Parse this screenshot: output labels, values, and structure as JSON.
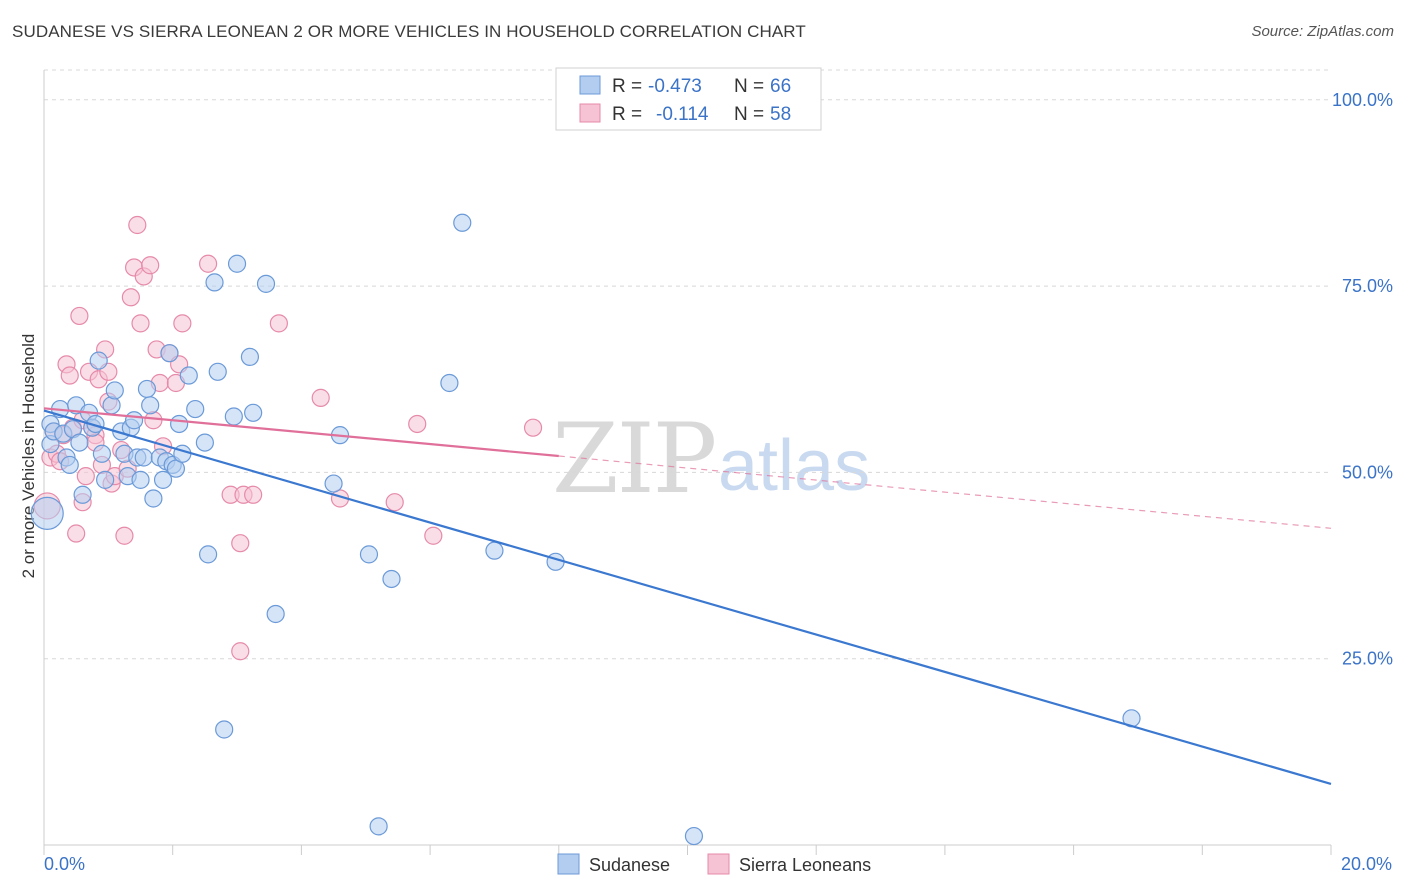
{
  "title": "SUDANESE VS SIERRA LEONEAN 2 OR MORE VEHICLES IN HOUSEHOLD CORRELATION CHART",
  "source": "Source: ZipAtlas.com",
  "watermark": {
    "zip": "ZIP",
    "atlas": "atlas"
  },
  "colors": {
    "blue_fill": "#b3cdf0",
    "blue_stroke": "#6b9ad8",
    "blue_line": "#3b78d0",
    "pink_fill": "#f6c3d4",
    "pink_stroke": "#e68aaa",
    "pink_line": "#e0709a",
    "tick_text": "#3b73c7",
    "grid": "#d8d8d8"
  },
  "legend": {
    "rows": [
      {
        "r_label": "R =",
        "r_value": "-0.473",
        "n_label": "N =",
        "n_value": "66"
      },
      {
        "r_label": "R =",
        "r_value": "-0.114",
        "n_label": "N =",
        "n_value": "58"
      }
    ]
  },
  "bottom_legend": [
    "Sudanese",
    "Sierra Leoneans"
  ],
  "chart_data": {
    "type": "scatter",
    "title": "SUDANESE VS SIERRA LEONEAN 2 OR MORE VEHICLES IN HOUSEHOLD CORRELATION CHART",
    "xlabel": "",
    "ylabel": "2 or more Vehicles in Household",
    "xlim": [
      0,
      20
    ],
    "ylim": [
      0,
      104
    ],
    "x_tick_labels": [
      "0.0%",
      "20.0%"
    ],
    "y_ticks": [
      25,
      50,
      75,
      100
    ],
    "y_tick_labels": [
      "25.0%",
      "50.0%",
      "75.0%",
      "100.0%"
    ],
    "series": [
      {
        "name": "Sudanese",
        "r": -0.473,
        "n": 66,
        "trend": {
          "x0": 0,
          "y0": 58.3,
          "x1": 20,
          "y1": 8.2
        },
        "points": [
          {
            "x": 0.05,
            "y": 44.5,
            "s": 16
          },
          {
            "x": 0.1,
            "y": 56.5
          },
          {
            "x": 0.1,
            "y": 53.8
          },
          {
            "x": 0.15,
            "y": 55.5
          },
          {
            "x": 0.25,
            "y": 58.5
          },
          {
            "x": 0.3,
            "y": 55.2
          },
          {
            "x": 0.35,
            "y": 52.0
          },
          {
            "x": 0.4,
            "y": 51.0
          },
          {
            "x": 0.45,
            "y": 55.8
          },
          {
            "x": 0.5,
            "y": 59.0
          },
          {
            "x": 0.55,
            "y": 54.0
          },
          {
            "x": 0.6,
            "y": 47.0
          },
          {
            "x": 0.7,
            "y": 58.0
          },
          {
            "x": 0.75,
            "y": 56.0
          },
          {
            "x": 0.8,
            "y": 56.5
          },
          {
            "x": 0.85,
            "y": 65.0
          },
          {
            "x": 0.9,
            "y": 52.5
          },
          {
            "x": 0.95,
            "y": 49.0
          },
          {
            "x": 1.05,
            "y": 59.0
          },
          {
            "x": 1.1,
            "y": 61.0
          },
          {
            "x": 1.2,
            "y": 55.5
          },
          {
            "x": 1.25,
            "y": 52.5
          },
          {
            "x": 1.3,
            "y": 49.5
          },
          {
            "x": 1.35,
            "y": 56.0
          },
          {
            "x": 1.4,
            "y": 57.0
          },
          {
            "x": 1.45,
            "y": 52.0
          },
          {
            "x": 1.5,
            "y": 49.0
          },
          {
            "x": 1.55,
            "y": 52.0
          },
          {
            "x": 1.6,
            "y": 61.2
          },
          {
            "x": 1.65,
            "y": 59.0
          },
          {
            "x": 1.7,
            "y": 46.5
          },
          {
            "x": 1.8,
            "y": 52.0
          },
          {
            "x": 1.85,
            "y": 49.0
          },
          {
            "x": 1.9,
            "y": 51.5
          },
          {
            "x": 1.95,
            "y": 66.0
          },
          {
            "x": 2.0,
            "y": 51.0
          },
          {
            "x": 2.05,
            "y": 50.5
          },
          {
            "x": 2.1,
            "y": 56.5
          },
          {
            "x": 2.15,
            "y": 52.5
          },
          {
            "x": 2.25,
            "y": 63.0
          },
          {
            "x": 2.35,
            "y": 58.5
          },
          {
            "x": 2.5,
            "y": 54.0
          },
          {
            "x": 2.55,
            "y": 39.0
          },
          {
            "x": 2.65,
            "y": 75.5
          },
          {
            "x": 2.7,
            "y": 63.5
          },
          {
            "x": 2.8,
            "y": 15.5
          },
          {
            "x": 2.95,
            "y": 57.5
          },
          {
            "x": 3.0,
            "y": 78.0
          },
          {
            "x": 3.2,
            "y": 65.5
          },
          {
            "x": 3.25,
            "y": 58.0
          },
          {
            "x": 3.45,
            "y": 75.3
          },
          {
            "x": 3.6,
            "y": 31.0
          },
          {
            "x": 4.5,
            "y": 48.5
          },
          {
            "x": 4.6,
            "y": 55.0
          },
          {
            "x": 5.05,
            "y": 39.0
          },
          {
            "x": 5.2,
            "y": 2.5
          },
          {
            "x": 5.4,
            "y": 35.7
          },
          {
            "x": 6.3,
            "y": 62.0
          },
          {
            "x": 6.5,
            "y": 83.5
          },
          {
            "x": 7.0,
            "y": 39.5
          },
          {
            "x": 7.95,
            "y": 38.0
          },
          {
            "x": 10.1,
            "y": 1.2
          },
          {
            "x": 16.9,
            "y": 17.0
          }
        ]
      },
      {
        "name": "Sierra Leoneans",
        "r": -0.114,
        "n": 58,
        "trend": {
          "x0": 0,
          "y0": 58.6,
          "x1": 8.0,
          "y1": 52.2,
          "dash_x1": 20,
          "dash_y1": 42.5
        },
        "points": [
          {
            "x": 0.05,
            "y": 45.5,
            "s": 13
          },
          {
            "x": 0.1,
            "y": 52.0
          },
          {
            "x": 0.15,
            "y": 55.5
          },
          {
            "x": 0.2,
            "y": 52.5
          },
          {
            "x": 0.25,
            "y": 51.5
          },
          {
            "x": 0.3,
            "y": 55.0
          },
          {
            "x": 0.35,
            "y": 64.5
          },
          {
            "x": 0.4,
            "y": 63.0
          },
          {
            "x": 0.45,
            "y": 56.0
          },
          {
            "x": 0.5,
            "y": 41.8
          },
          {
            "x": 0.55,
            "y": 71.0
          },
          {
            "x": 0.6,
            "y": 57.0
          },
          {
            "x": 0.6,
            "y": 46.0
          },
          {
            "x": 0.65,
            "y": 49.5
          },
          {
            "x": 0.7,
            "y": 63.5
          },
          {
            "x": 0.75,
            "y": 56.0
          },
          {
            "x": 0.8,
            "y": 55.0
          },
          {
            "x": 0.8,
            "y": 54.0
          },
          {
            "x": 0.85,
            "y": 62.5
          },
          {
            "x": 0.9,
            "y": 51.0
          },
          {
            "x": 0.95,
            "y": 66.5
          },
          {
            "x": 1.0,
            "y": 63.5
          },
          {
            "x": 1.0,
            "y": 59.5
          },
          {
            "x": 1.05,
            "y": 48.5
          },
          {
            "x": 1.1,
            "y": 49.5
          },
          {
            "x": 1.2,
            "y": 53.0
          },
          {
            "x": 1.25,
            "y": 41.5
          },
          {
            "x": 1.3,
            "y": 50.5
          },
          {
            "x": 1.35,
            "y": 73.5
          },
          {
            "x": 1.4,
            "y": 77.5
          },
          {
            "x": 1.45,
            "y": 83.2
          },
          {
            "x": 1.5,
            "y": 70.0
          },
          {
            "x": 1.55,
            "y": 76.3
          },
          {
            "x": 1.65,
            "y": 77.8
          },
          {
            "x": 1.7,
            "y": 57.0
          },
          {
            "x": 1.75,
            "y": 66.5
          },
          {
            "x": 1.8,
            "y": 62.0
          },
          {
            "x": 1.85,
            "y": 53.5
          },
          {
            "x": 1.95,
            "y": 66.0
          },
          {
            "x": 2.05,
            "y": 62.0
          },
          {
            "x": 2.1,
            "y": 64.5
          },
          {
            "x": 2.15,
            "y": 70.0
          },
          {
            "x": 2.55,
            "y": 78.0
          },
          {
            "x": 2.9,
            "y": 47.0
          },
          {
            "x": 3.05,
            "y": 26.0
          },
          {
            "x": 3.05,
            "y": 40.5
          },
          {
            "x": 3.1,
            "y": 47.0
          },
          {
            "x": 3.25,
            "y": 47.0
          },
          {
            "x": 3.65,
            "y": 70.0
          },
          {
            "x": 4.3,
            "y": 60.0
          },
          {
            "x": 4.6,
            "y": 46.5
          },
          {
            "x": 5.45,
            "y": 46.0
          },
          {
            "x": 5.8,
            "y": 56.5
          },
          {
            "x": 6.05,
            "y": 41.5
          },
          {
            "x": 7.6,
            "y": 56.0
          }
        ]
      }
    ]
  }
}
